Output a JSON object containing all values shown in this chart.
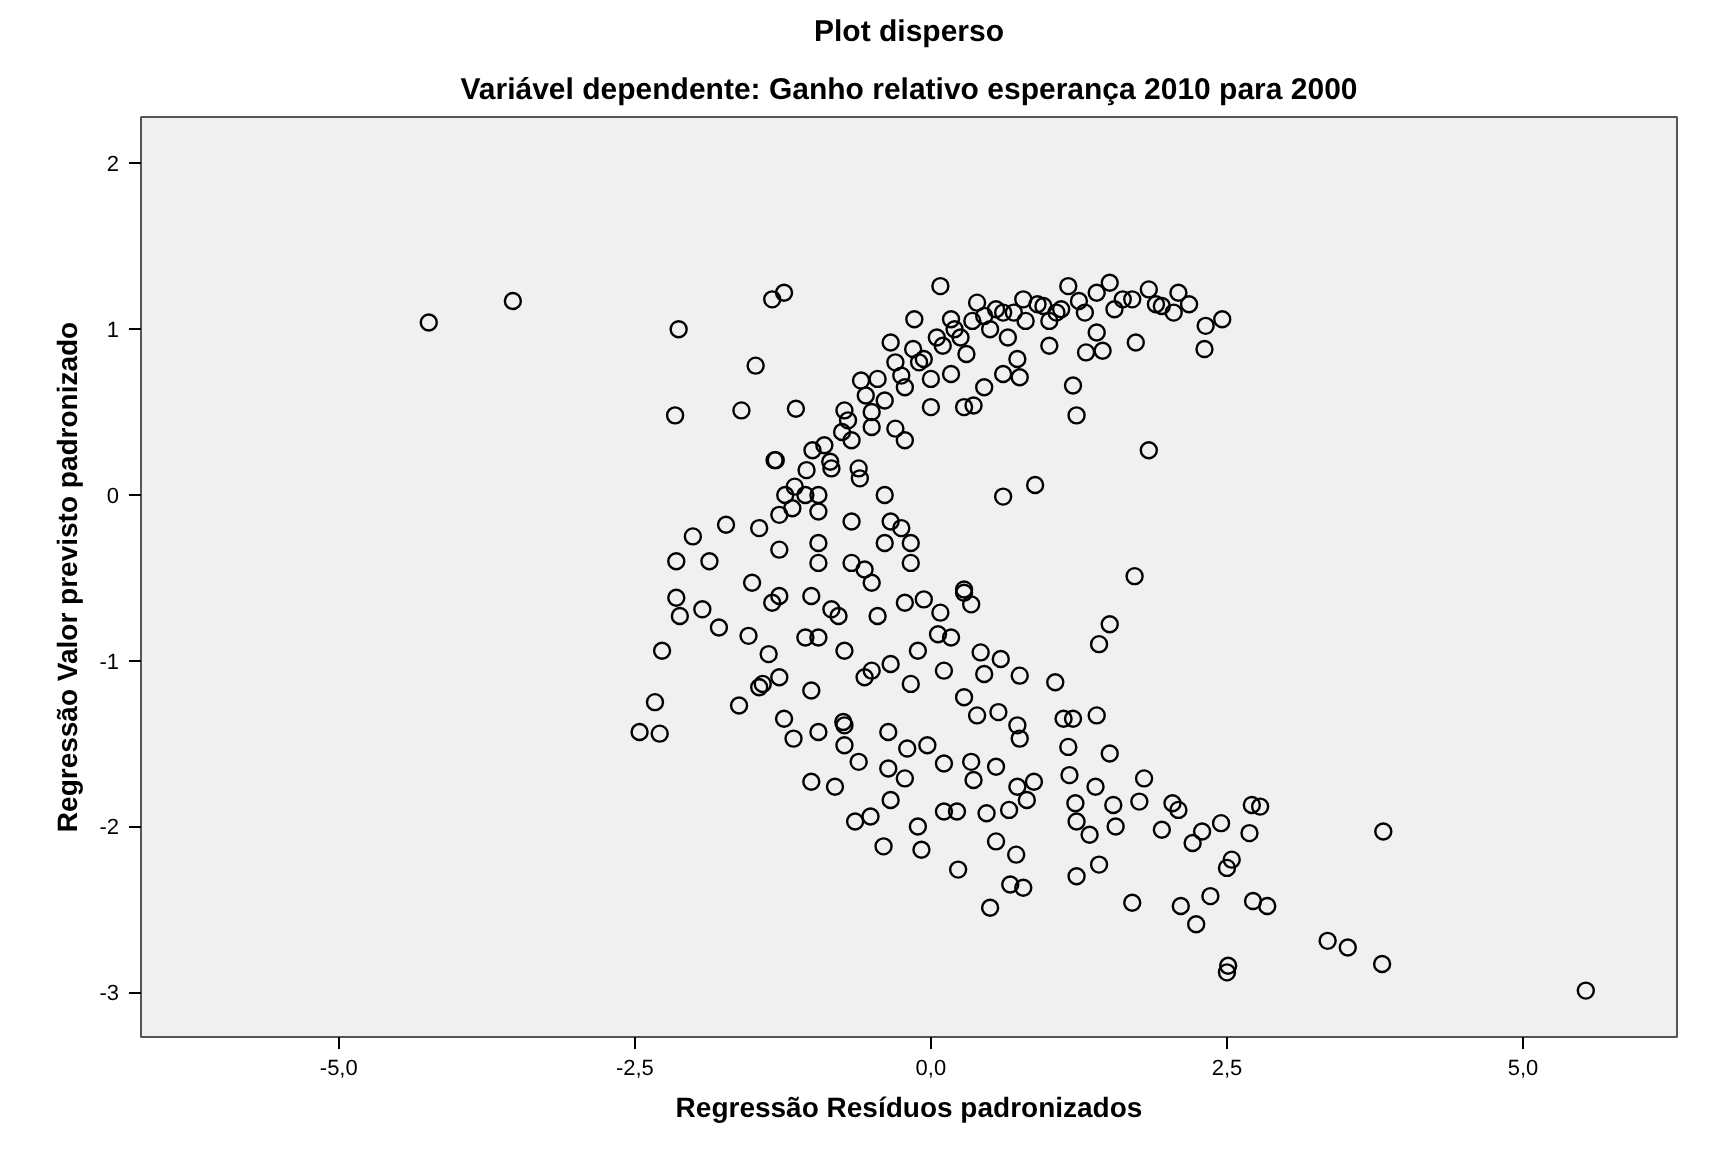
{
  "chart_data": {
    "type": "scatter",
    "title": "Plot disperso",
    "subtitle": "Variável dependente: Ganho relativo esperança 2010 para 2000",
    "xlabel": "Regressão Resíduos padronizados",
    "ylabel": "Regressão Valor previsto padronizado",
    "marker": "circle",
    "grid": false,
    "xlim": [
      -6.67,
      6.3
    ],
    "ylim": [
      -3.27,
      2.28
    ],
    "xticks": [
      {
        "value": -5,
        "label": "-5,0"
      },
      {
        "value": -2.5,
        "label": "-2,5"
      },
      {
        "value": 0,
        "label": "0,0"
      },
      {
        "value": 2.5,
        "label": "2,5"
      },
      {
        "value": 5,
        "label": "5,0"
      }
    ],
    "yticks": [
      -3,
      -2,
      -1,
      0,
      1,
      2
    ],
    "series": [
      {
        "color": "#000000",
        "x": [
          -4.24,
          -3.53,
          -2.13,
          -2.16,
          -1.34,
          -1.24,
          -1.48,
          -1.6,
          -1.14,
          -1.32,
          -1.73,
          -2.01,
          -2.15,
          -1.87,
          0.08,
          1.16,
          1.51,
          1.84,
          2.09,
          2.18,
          2.46,
          2.32,
          2.31,
          1.73,
          1.45,
          1.31,
          1.2,
          1.23,
          1.84,
          0.88,
          0.61,
          1.72,
          0.75,
          0.36,
          -0.14,
          -0.34,
          -0.59,
          -0.73,
          -1.0,
          -1.31,
          -1.23,
          0.39,
          0.78,
          0.95,
          1.4,
          1.62,
          1.95,
          0.17,
          0.61,
          1.06,
          1.4,
          1.0,
          0.73,
          0.45,
          0.17,
          -0.06,
          -0.22,
          -0.39,
          -0.5,
          -0.67,
          -0.84,
          -0.95,
          -1.17,
          -0.39,
          -0.34,
          -0.61,
          -0.22,
          0.0,
          0.28,
          0.61,
          -0.17,
          0.28,
          -1.45,
          -2.15,
          -2.12,
          -1.93,
          -1.79,
          -1.54,
          -1.51,
          -2.27,
          -2.33,
          -2.46,
          -2.29,
          -1.62,
          -1.45,
          -1.37,
          -1.28,
          -1.24,
          -1.16,
          -1.01,
          -0.81,
          -0.64,
          -0.51,
          -0.4,
          -0.95,
          -0.73,
          -0.61,
          -0.36,
          -0.34,
          -0.36,
          -1.01,
          -0.73,
          -0.56,
          -1.06,
          -1.28,
          -1.01,
          -0.84,
          -0.5,
          -1.28,
          -0.95,
          -0.67,
          -0.45,
          -1.06,
          1.51,
          1.42,
          1.05,
          1.4,
          1.12,
          1.2,
          1.16,
          1.51,
          1.17,
          1.8,
          1.39,
          1.54,
          1.76,
          1.22,
          1.23,
          1.34,
          1.56,
          1.42,
          1.23,
          1.7,
          1.95,
          2.04,
          2.09,
          2.21,
          2.29,
          2.45,
          2.69,
          2.71,
          2.78,
          2.54,
          2.5,
          2.36,
          2.11,
          2.24,
          2.72,
          2.84,
          2.51,
          2.5,
          3.82,
          3.35,
          3.52,
          3.81,
          5.53,
          0.5,
          0.23,
          0.72,
          0.55,
          0.67,
          0.78,
          -0.08,
          -0.11,
          0.11,
          0.22,
          0.47,
          0.66,
          0.81,
          0.73,
          0.87,
          0.55,
          0.36,
          0.34,
          0.11,
          -0.03,
          -0.2,
          -0.22,
          -0.73,
          -0.74,
          -0.17,
          0.11,
          0.28,
          0.39,
          0.57,
          0.73,
          0.75,
          0.45,
          0.59,
          0.75,
          0.42,
          0.28,
          0.34,
          0.06,
          0.17,
          -0.11,
          -0.22,
          -0.06,
          0.08,
          -0.17,
          -0.25,
          -0.5,
          -0.34,
          -1.42,
          -1.34,
          -0.95,
          -0.78,
          -0.56,
          -0.95,
          -0.39,
          -0.67,
          -1.28,
          -1.15,
          -1.05,
          -0.9,
          -0.85,
          -0.75,
          -0.7,
          -0.55,
          -0.5,
          -0.45,
          -0.3,
          -0.25,
          -0.15,
          -0.1,
          0.05,
          0.1,
          0.2,
          0.25,
          0.35,
          0.45,
          0.5,
          0.55,
          0.7,
          0.8,
          0.9,
          1.1,
          1.25,
          1.3,
          1.55,
          1.7,
          1.9,
          2.05,
          -0.95,
          -0.6,
          -0.3,
          0.0,
          0.3,
          0.65,
          1.0
        ],
        "values": [
          1.04,
          1.17,
          1.0,
          0.48,
          1.18,
          1.22,
          0.78,
          0.51,
          0.52,
          0.21,
          -0.18,
          -0.25,
          -0.4,
          -0.4,
          1.26,
          1.26,
          1.28,
          1.24,
          1.22,
          1.15,
          1.06,
          1.02,
          0.88,
          0.92,
          0.87,
          0.86,
          0.66,
          0.48,
          0.27,
          0.06,
          -0.01,
          -0.49,
          0.71,
          0.54,
          1.06,
          0.92,
          0.69,
          0.51,
          0.27,
          0.21,
          0.0,
          1.16,
          1.18,
          1.14,
          1.22,
          1.18,
          1.14,
          1.06,
          1.1,
          1.1,
          0.98,
          0.9,
          0.82,
          0.65,
          0.73,
          0.82,
          0.65,
          0.57,
          0.41,
          0.33,
          0.16,
          0.0,
          -0.08,
          0.0,
          -0.16,
          0.16,
          0.33,
          0.53,
          0.53,
          0.73,
          -0.29,
          -0.57,
          -0.2,
          -0.62,
          -0.73,
          -0.69,
          -0.8,
          -0.85,
          -0.53,
          -0.94,
          -1.25,
          -1.43,
          -1.44,
          -1.27,
          -1.16,
          -0.96,
          -1.1,
          -1.35,
          -1.47,
          -1.73,
          -1.76,
          -1.97,
          -1.94,
          -2.12,
          -1.43,
          -1.39,
          -1.61,
          -1.43,
          -1.84,
          -1.65,
          -1.18,
          -0.94,
          -1.1,
          -0.86,
          -0.61,
          -0.61,
          -0.69,
          -0.53,
          -0.33,
          -0.29,
          -0.41,
          -0.73,
          0.0,
          -0.78,
          -0.9,
          -1.13,
          -1.33,
          -1.35,
          -1.35,
          -1.52,
          -1.56,
          -1.69,
          -1.71,
          -1.76,
          -1.87,
          -1.85,
          -1.86,
          -1.97,
          -2.05,
          -2.0,
          -2.23,
          -2.3,
          -2.46,
          -2.02,
          -1.86,
          -1.9,
          -2.1,
          -2.03,
          -1.98,
          -2.04,
          -1.87,
          -1.88,
          -2.2,
          -2.25,
          -2.42,
          -2.48,
          -2.59,
          -2.45,
          -2.48,
          -2.84,
          -2.88,
          -2.03,
          -2.69,
          -2.73,
          -2.83,
          -2.99,
          -2.49,
          -2.26,
          -2.17,
          -2.09,
          -2.35,
          -2.37,
          -2.14,
          -2.0,
          -1.91,
          -1.91,
          -1.92,
          -1.9,
          -1.84,
          -1.76,
          -1.73,
          -1.64,
          -1.72,
          -1.61,
          -1.62,
          -1.51,
          -1.53,
          -1.71,
          -1.51,
          -1.37,
          -1.14,
          -1.06,
          -1.22,
          -1.33,
          -1.31,
          -1.39,
          -1.47,
          -1.08,
          -0.99,
          -1.09,
          -0.95,
          -0.59,
          -0.66,
          -0.84,
          -0.86,
          -0.94,
          -0.65,
          -0.63,
          -0.71,
          -0.41,
          -0.2,
          -1.06,
          -1.02,
          -1.14,
          -0.65,
          -0.86,
          -0.73,
          -0.45,
          -0.41,
          -0.29,
          -0.16,
          -0.12,
          0.05,
          0.15,
          0.3,
          0.2,
          0.38,
          0.45,
          0.6,
          0.5,
          0.7,
          0.8,
          0.72,
          0.88,
          0.8,
          0.95,
          0.9,
          1.0,
          0.95,
          1.05,
          1.08,
          1.0,
          1.12,
          1.1,
          1.05,
          1.15,
          1.12,
          1.17,
          1.1,
          1.12,
          1.18,
          1.15,
          1.1,
          -0.1,
          0.1,
          0.4,
          0.7,
          0.85,
          0.95,
          1.05
        ]
      }
    ]
  }
}
